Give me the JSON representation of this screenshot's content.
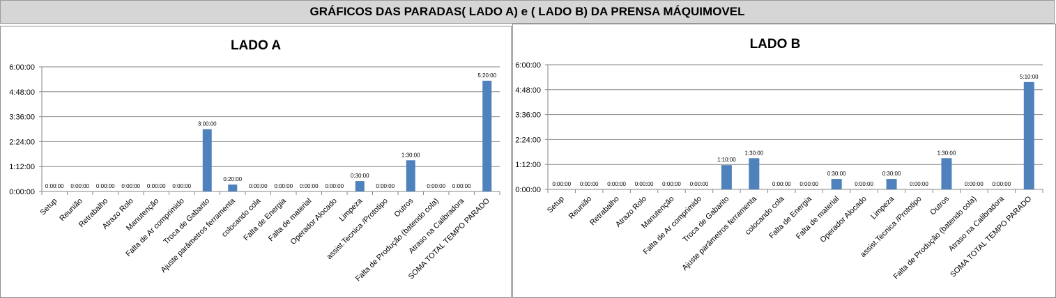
{
  "header": {
    "title": "GRÁFICOS DAS PARADAS( LADO A) e ( LADO B) DA PRENSA MÁQUIMOVEL"
  },
  "colors": {
    "bar": "#4f81bd",
    "grid": "#868686",
    "header_bg": "#d6d6d6"
  },
  "chart_data": [
    {
      "type": "bar",
      "title": "LADO A",
      "categories": [
        "Setup",
        "Reunião",
        "Retrabalho",
        "Atrazo Rolo",
        "Manutenção",
        "Falta de Ar comprimido",
        "Troca de Gabarito",
        "Ajuste parâmetros ferramenta",
        "colocando cola",
        "Falta de Energia",
        "Falta de material",
        "Operador Alocado",
        "Limpeza",
        "assist.Tecnica /Prototipo",
        "Outros",
        "Falta de Produção (batendo cola)",
        "Atraso na Calibradora",
        "SOMA TOTAL TEMPO PARADO"
      ],
      "values": [
        0,
        0,
        0,
        0,
        0,
        0,
        3.0,
        0.333,
        0,
        0,
        0,
        0,
        0.5,
        0,
        1.5,
        0,
        0,
        5.333
      ],
      "data_labels": [
        "0:00:00",
        "0:00:00",
        "0:00:00",
        "0:00:00",
        "0:00:00",
        "0:00:00",
        "3:00:00",
        "0:20:00",
        "0:00:00",
        "0:00:00",
        "0:00:00",
        "0:00:00",
        "0:30:00",
        "0:00:00",
        "1:30:00",
        "0:00:00",
        "0:00:00",
        "5:20:00"
      ],
      "unit": "hours",
      "ylim": [
        0,
        6
      ],
      "yticks": [
        "0:00:00",
        "1:12:00",
        "2:24:00",
        "3:36:00",
        "4:48:00",
        "6:00:00"
      ],
      "grid": true,
      "legend": "none"
    },
    {
      "type": "bar",
      "title": "LADO B",
      "categories": [
        "Setup",
        "Reunião",
        "Retrabalho",
        "Atrazo Rolo",
        "Manutenção",
        "Falta de Ar comprimido",
        "Troca de Gabarito",
        "Ajuste parâmetros ferramenta",
        "colocando cola",
        "Falta de Energia",
        "Falta de material",
        "Operador Alocado",
        "Limpeza",
        "assist.Tecnica /Prototipo",
        "Outros",
        "Falta de Produção (batendo cola)",
        "Atraso na Calibradora",
        "SOMA TOTAL TEMPO PARADO"
      ],
      "values": [
        0,
        0,
        0,
        0,
        0,
        0,
        1.167,
        1.5,
        0,
        0,
        0.5,
        0,
        0.5,
        0,
        1.5,
        0,
        0,
        5.167
      ],
      "data_labels": [
        "0:00:00",
        "0:00:00",
        "0:00:00",
        "0:00:00",
        "0:00:00",
        "0:00:00",
        "1:10:00",
        "1:30:00",
        "0:00:00",
        "0:00:00",
        "0:30:00",
        "0:00:00",
        "0:30:00",
        "0:00:00",
        "1:30:00",
        "0:00:00",
        "0:00:00",
        "5:10:00"
      ],
      "unit": "hours",
      "ylim": [
        0,
        6
      ],
      "yticks": [
        "0:00:00",
        "1:12:00",
        "2:24:00",
        "3:36:00",
        "4:48:00",
        "6:00:00"
      ],
      "grid": true,
      "legend": "none"
    }
  ]
}
